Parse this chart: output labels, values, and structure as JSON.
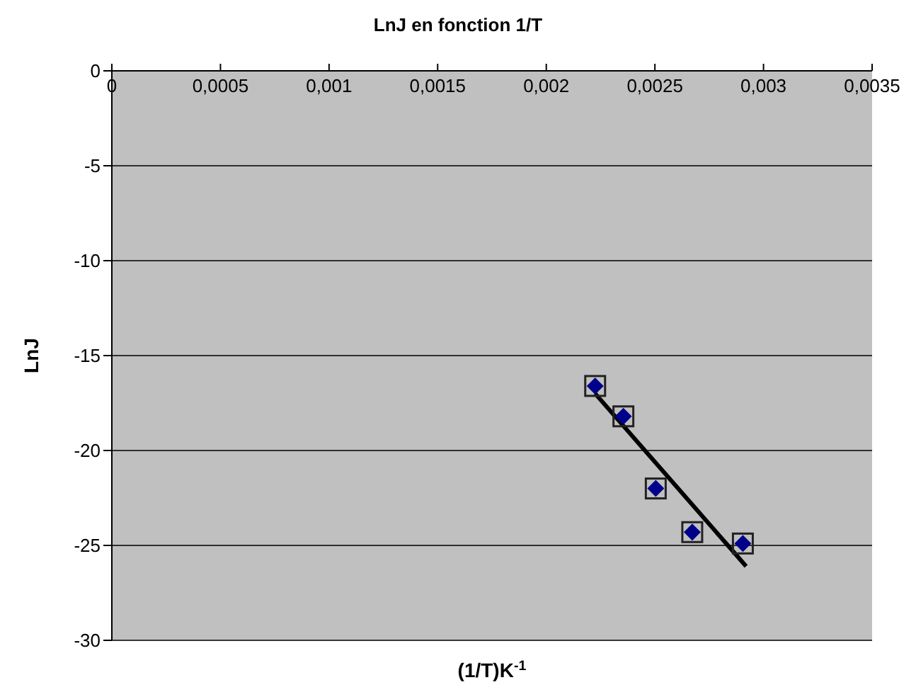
{
  "chart_data": {
    "type": "scatter",
    "title": "LnJ en fonction 1/T",
    "xlabel": "(1/T)K$^{-1}$",
    "ylabel": "LnJ",
    "x": [
      0.002225,
      0.002355,
      0.002504,
      0.002672,
      0.002905
    ],
    "series": [
      {
        "color": "#00008b",
        "marker": "diamond",
        "values": [
          -16.6,
          -18.2,
          -22.0,
          -24.3,
          -24.9
        ]
      },
      {
        "type": "line",
        "color": "#000000",
        "x": [
          0.002225,
          0.00292
        ],
        "values": [
          -17.0,
          -26.1
        ]
      }
    ],
    "xlim": [
      0,
      0.0035
    ],
    "xticks": [
      {
        "value": 0,
        "label": "0"
      },
      {
        "value": 0.0005,
        "label": "0,0005"
      },
      {
        "value": 0.001,
        "label": "0,001"
      },
      {
        "value": 0.0015,
        "label": "0,0015"
      },
      {
        "value": 0.002,
        "label": "0,002"
      },
      {
        "value": 0.0025,
        "label": "0,0025"
      },
      {
        "value": 0.003,
        "label": "0,003"
      },
      {
        "value": 0.0035,
        "label": "0,0035"
      }
    ],
    "ylim": [
      -30,
      0
    ],
    "yticks": [
      -30,
      -25,
      -20,
      -15,
      -10,
      -5,
      0
    ],
    "grid": "y",
    "legend": false
  }
}
